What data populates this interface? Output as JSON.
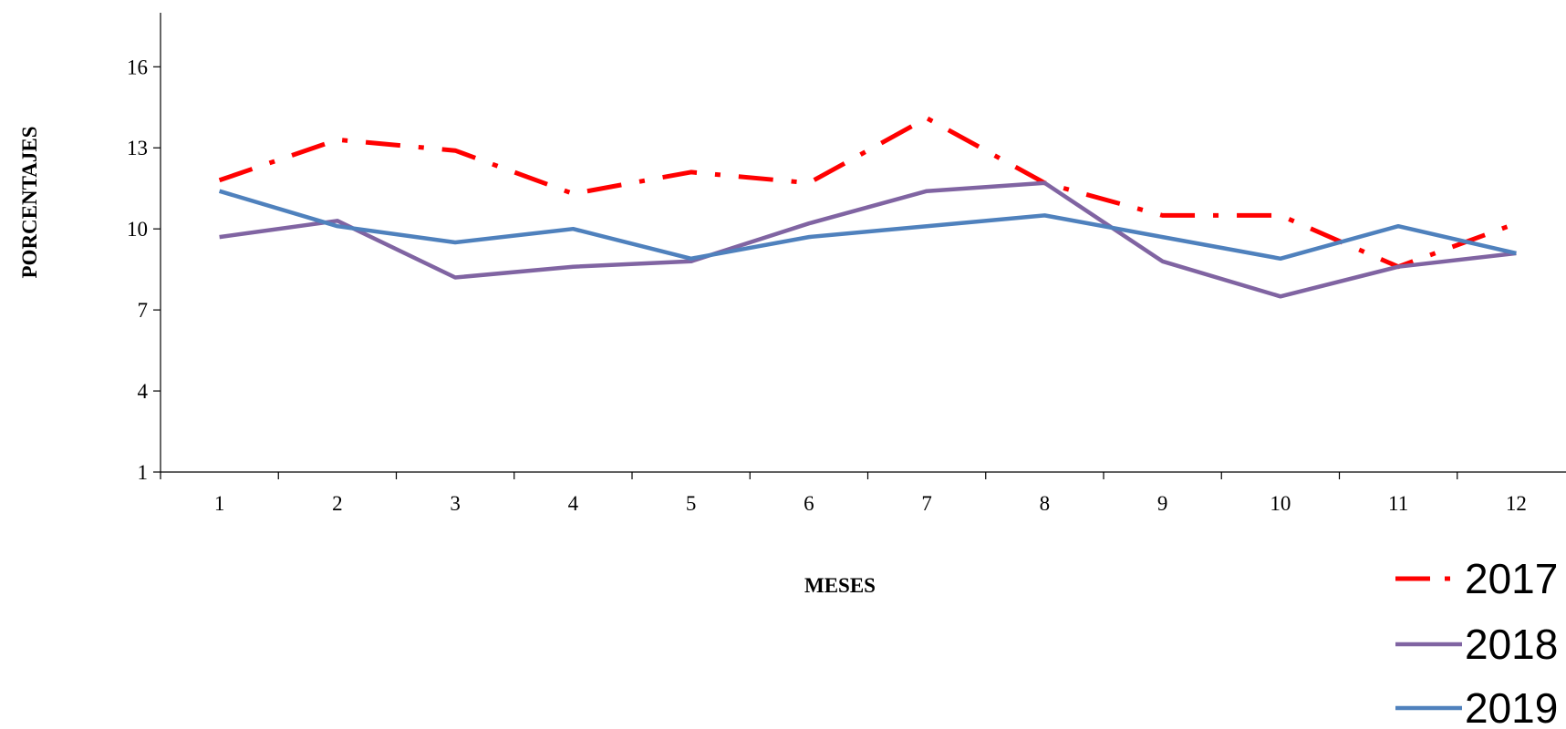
{
  "chart_data": {
    "type": "line",
    "title": "",
    "xlabel": "MESES",
    "ylabel": "PORCENTAJES",
    "categories": [
      "1",
      "2",
      "3",
      "4",
      "5",
      "6",
      "7",
      "8",
      "9",
      "10",
      "11",
      "12"
    ],
    "ylim": [
      1,
      18
    ],
    "yticks": [
      1,
      4,
      7,
      10,
      13,
      16
    ],
    "grid": false,
    "legend_position": "bottom-right",
    "series": [
      {
        "name": "2017",
        "color": "#ff0000",
        "style": "dash-dot",
        "values": [
          11.8,
          13.3,
          12.9,
          11.3,
          12.1,
          11.7,
          14.1,
          11.7,
          10.5,
          10.5,
          8.6,
          10.2
        ]
      },
      {
        "name": "2018",
        "color": "#8064a2",
        "style": "solid",
        "values": [
          9.7,
          10.3,
          8.2,
          8.6,
          8.8,
          10.2,
          11.4,
          11.7,
          8.8,
          7.5,
          8.6,
          9.1
        ]
      },
      {
        "name": "2019",
        "color": "#4f81bd",
        "style": "solid",
        "values": [
          11.4,
          10.1,
          9.5,
          10.0,
          8.9,
          9.7,
          10.1,
          10.5,
          9.7,
          8.9,
          10.1,
          9.1
        ]
      }
    ]
  }
}
